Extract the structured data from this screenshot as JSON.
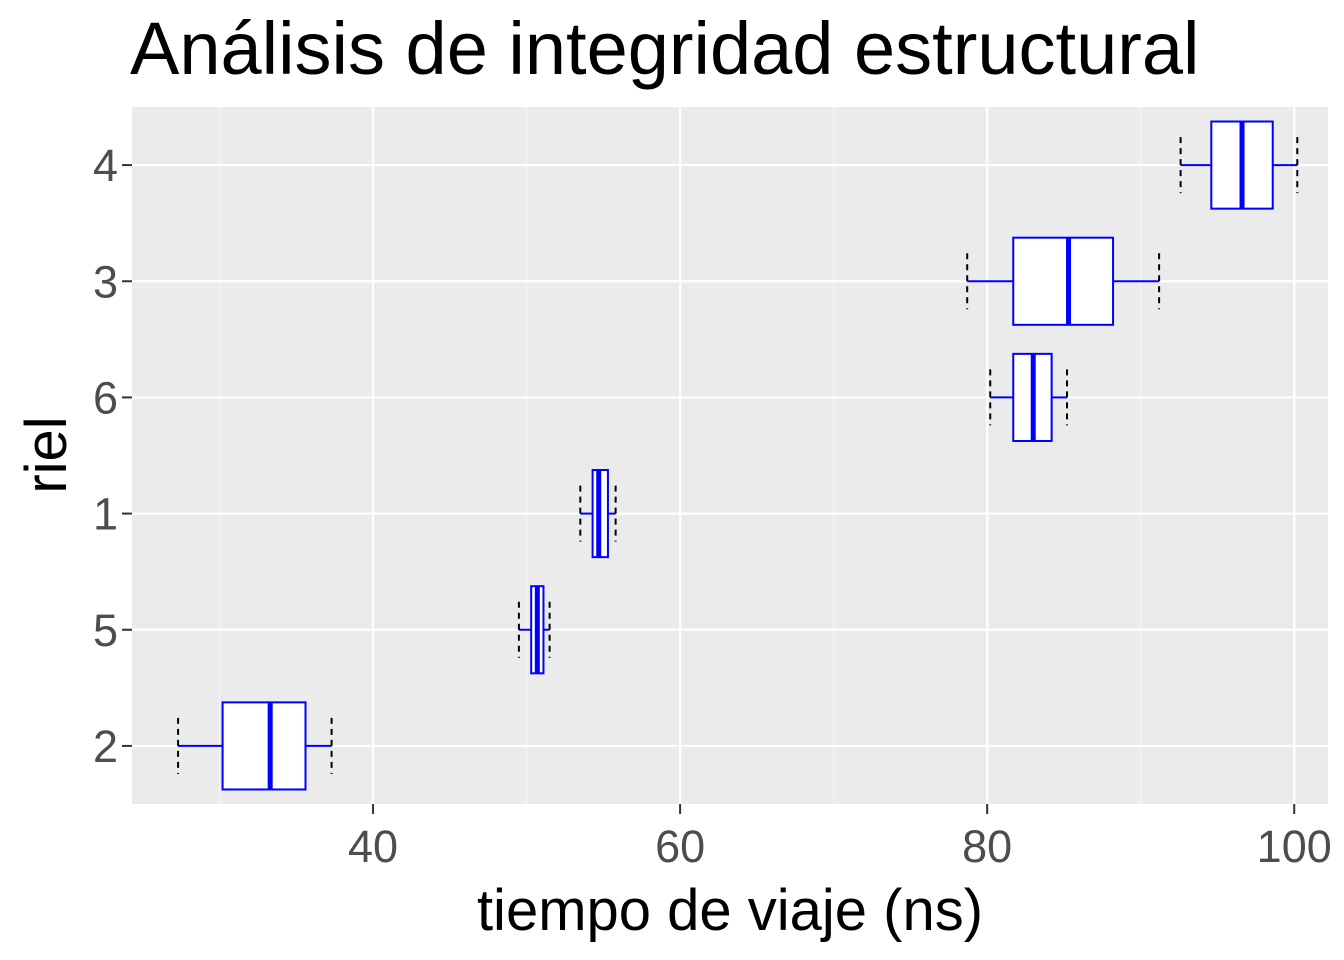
{
  "chart_data": {
    "type": "boxplot",
    "orientation": "horizontal",
    "title": "Análisis de integridad estructural",
    "xlabel": "tiempo de viaje (ns)",
    "ylabel": "riel",
    "xlim": [
      24.3,
      102.2
    ],
    "x_ticks": [
      40,
      60,
      80,
      100
    ],
    "categories": [
      "2",
      "5",
      "1",
      "6",
      "3",
      "4"
    ],
    "boxes": [
      {
        "category": "2",
        "whisker_low": 27.3,
        "q1": 30.2,
        "median": 33.3,
        "q3": 35.6,
        "whisker_high": 37.3
      },
      {
        "category": "5",
        "whisker_low": 49.5,
        "q1": 50.3,
        "median": 50.7,
        "q3": 51.1,
        "whisker_high": 51.5
      },
      {
        "category": "1",
        "whisker_low": 53.5,
        "q1": 54.3,
        "median": 54.7,
        "q3": 55.3,
        "whisker_high": 55.8
      },
      {
        "category": "6",
        "whisker_low": 80.2,
        "q1": 81.7,
        "median": 83.0,
        "q3": 84.2,
        "whisker_high": 85.2
      },
      {
        "category": "3",
        "whisker_low": 78.7,
        "q1": 81.7,
        "median": 85.3,
        "q3": 88.2,
        "whisker_high": 91.2
      },
      {
        "category": "4",
        "whisker_low": 92.6,
        "q1": 94.6,
        "median": 96.6,
        "q3": 98.6,
        "whisker_high": 100.2
      }
    ],
    "grid": true,
    "legend": "none",
    "colors": {
      "panel_background": "#ebebeb",
      "grid_major": "#ffffff",
      "grid_minor": "#f5f5f5",
      "box_stroke": "#0000ff",
      "box_fill": "#ffffff",
      "whisker_cap": "#000000",
      "tick_text": "#4d4d4d",
      "tick_mark": "#333333"
    }
  }
}
